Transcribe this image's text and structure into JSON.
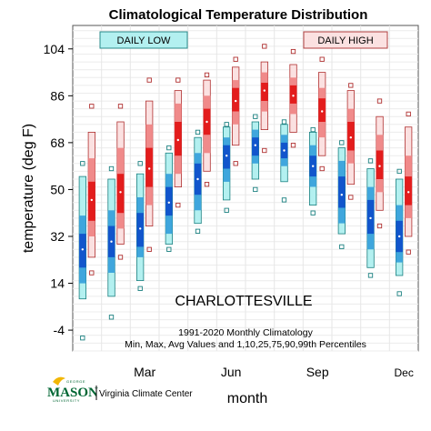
{
  "chart_data": {
    "type": "box",
    "title": "Climatological Temperature Distribution",
    "ylabel": "temperature (deg F)",
    "xlabel": "month",
    "ylim": [
      -12,
      113
    ],
    "yticks": [
      -4,
      14,
      32,
      50,
      68,
      86,
      104
    ],
    "month_ticks": [
      {
        "label": "Mar",
        "month": 3
      },
      {
        "label": "Jun",
        "month": 6
      },
      {
        "label": "Sep",
        "month": 9
      },
      {
        "label": "Dec",
        "month": 12
      }
    ],
    "grid": true,
    "station_label": "CHARLOTTESVILLE",
    "note_line1": "1991-2020 Monthly Climatology",
    "note_line2": "Min, Max, Avg Values and 1,10,25,75,90,99th Percentiles",
    "months": [
      1,
      2,
      3,
      4,
      5,
      6,
      7,
      8,
      9,
      10,
      11,
      12
    ],
    "series": [
      {
        "name": "DAILY LOW",
        "colors": {
          "outer": "#b3f0f0",
          "middle": "#3fa6dd",
          "inner": "#1155cc",
          "edge": "#1a8080",
          "marker": "#1a8080"
        },
        "stats": [
          {
            "min": -7,
            "p1": 8,
            "p10": 14,
            "p25": 20,
            "avg": 27,
            "p75": 33,
            "p90": 40,
            "p99": 55,
            "max": 60
          },
          {
            "min": 1,
            "p1": 9,
            "p10": 18,
            "p25": 24,
            "avg": 30,
            "p75": 36,
            "p90": 42,
            "p99": 54,
            "max": 58
          },
          {
            "min": 12,
            "p1": 15,
            "p10": 24,
            "p25": 28,
            "avg": 35,
            "p75": 41,
            "p90": 47,
            "p99": 56,
            "max": 60
          },
          {
            "min": 27,
            "p1": 29,
            "p10": 33,
            "p25": 40,
            "avg": 45,
            "p75": 51,
            "p90": 56,
            "p99": 64,
            "max": 66
          },
          {
            "min": 34,
            "p1": 37,
            "p10": 42,
            "p25": 48,
            "avg": 54,
            "p75": 60,
            "p90": 64,
            "p99": 70,
            "max": 72
          },
          {
            "min": 42,
            "p1": 46,
            "p10": 53,
            "p25": 58,
            "avg": 63,
            "p75": 67,
            "p90": 70,
            "p99": 74,
            "max": 75
          },
          {
            "min": 50,
            "p1": 54,
            "p10": 60,
            "p25": 63,
            "avg": 67,
            "p75": 70,
            "p90": 73,
            "p99": 76,
            "max": 78
          },
          {
            "min": 46,
            "p1": 53,
            "p10": 59,
            "p25": 62,
            "avg": 65,
            "p75": 68,
            "p90": 71,
            "p99": 75,
            "max": 76
          },
          {
            "min": 41,
            "p1": 44,
            "p10": 51,
            "p25": 55,
            "avg": 59,
            "p75": 63,
            "p90": 67,
            "p99": 72,
            "max": 73
          },
          {
            "min": 28,
            "p1": 33,
            "p10": 37,
            "p25": 43,
            "avg": 48,
            "p75": 55,
            "p90": 61,
            "p99": 66,
            "max": 68
          },
          {
            "min": 17,
            "p1": 20,
            "p10": 27,
            "p25": 33,
            "avg": 39,
            "p75": 46,
            "p90": 51,
            "p99": 58,
            "max": 61
          },
          {
            "min": 10,
            "p1": 17,
            "p10": 22,
            "p25": 26,
            "avg": 32,
            "p75": 38,
            "p90": 44,
            "p99": 54,
            "max": 57
          }
        ]
      },
      {
        "name": "DAILY HIGH",
        "colors": {
          "outer": "#fbe1e1",
          "middle": "#f08a8a",
          "inner": "#e31c1c",
          "edge": "#b03030",
          "marker": "#b03030"
        },
        "stats": [
          {
            "min": 18,
            "p1": 24,
            "p10": 32,
            "p25": 38,
            "avg": 46,
            "p75": 53,
            "p90": 62,
            "p99": 72,
            "max": 82
          },
          {
            "min": 24,
            "p1": 29,
            "p10": 35,
            "p25": 41,
            "avg": 49,
            "p75": 56,
            "p90": 66,
            "p99": 76,
            "max": 82
          },
          {
            "min": 27,
            "p1": 36,
            "p10": 44,
            "p25": 51,
            "avg": 58,
            "p75": 66,
            "p90": 75,
            "p99": 84,
            "max": 92
          },
          {
            "min": 44,
            "p1": 51,
            "p10": 56,
            "p25": 63,
            "avg": 69,
            "p75": 76,
            "p90": 83,
            "p99": 88,
            "max": 92
          },
          {
            "min": 52,
            "p1": 57,
            "p10": 64,
            "p25": 71,
            "avg": 76,
            "p75": 81,
            "p90": 86,
            "p99": 92,
            "max": 94
          },
          {
            "min": 60,
            "p1": 67,
            "p10": 75,
            "p25": 80,
            "avg": 84,
            "p75": 89,
            "p90": 92,
            "p99": 97,
            "max": 100
          },
          {
            "min": 65,
            "p1": 73,
            "p10": 80,
            "p25": 84,
            "avg": 88,
            "p75": 91,
            "p90": 95,
            "p99": 99,
            "max": 105
          },
          {
            "min": 67,
            "p1": 72,
            "p10": 79,
            "p25": 83,
            "avg": 86,
            "p75": 90,
            "p90": 93,
            "p99": 98,
            "max": 103
          },
          {
            "min": 58,
            "p1": 63,
            "p10": 70,
            "p25": 76,
            "avg": 80,
            "p75": 85,
            "p90": 89,
            "p99": 95,
            "max": 100
          },
          {
            "min": 47,
            "p1": 52,
            "p10": 60,
            "p25": 65,
            "avg": 70,
            "p75": 76,
            "p90": 81,
            "p99": 88,
            "max": 90
          },
          {
            "min": 36,
            "p1": 42,
            "p10": 49,
            "p25": 54,
            "avg": 59,
            "p75": 65,
            "p90": 71,
            "p99": 78,
            "max": 84
          },
          {
            "min": 26,
            "p1": 32,
            "p10": 39,
            "p25": 44,
            "avg": 49,
            "p75": 55,
            "p90": 63,
            "p99": 74,
            "max": 79
          }
        ]
      }
    ]
  },
  "logo": {
    "small_top": "GEORGE",
    "wordmark": "MASON",
    "small_bottom": "UNIVERSITY",
    "org": "Virginia Climate Center"
  }
}
